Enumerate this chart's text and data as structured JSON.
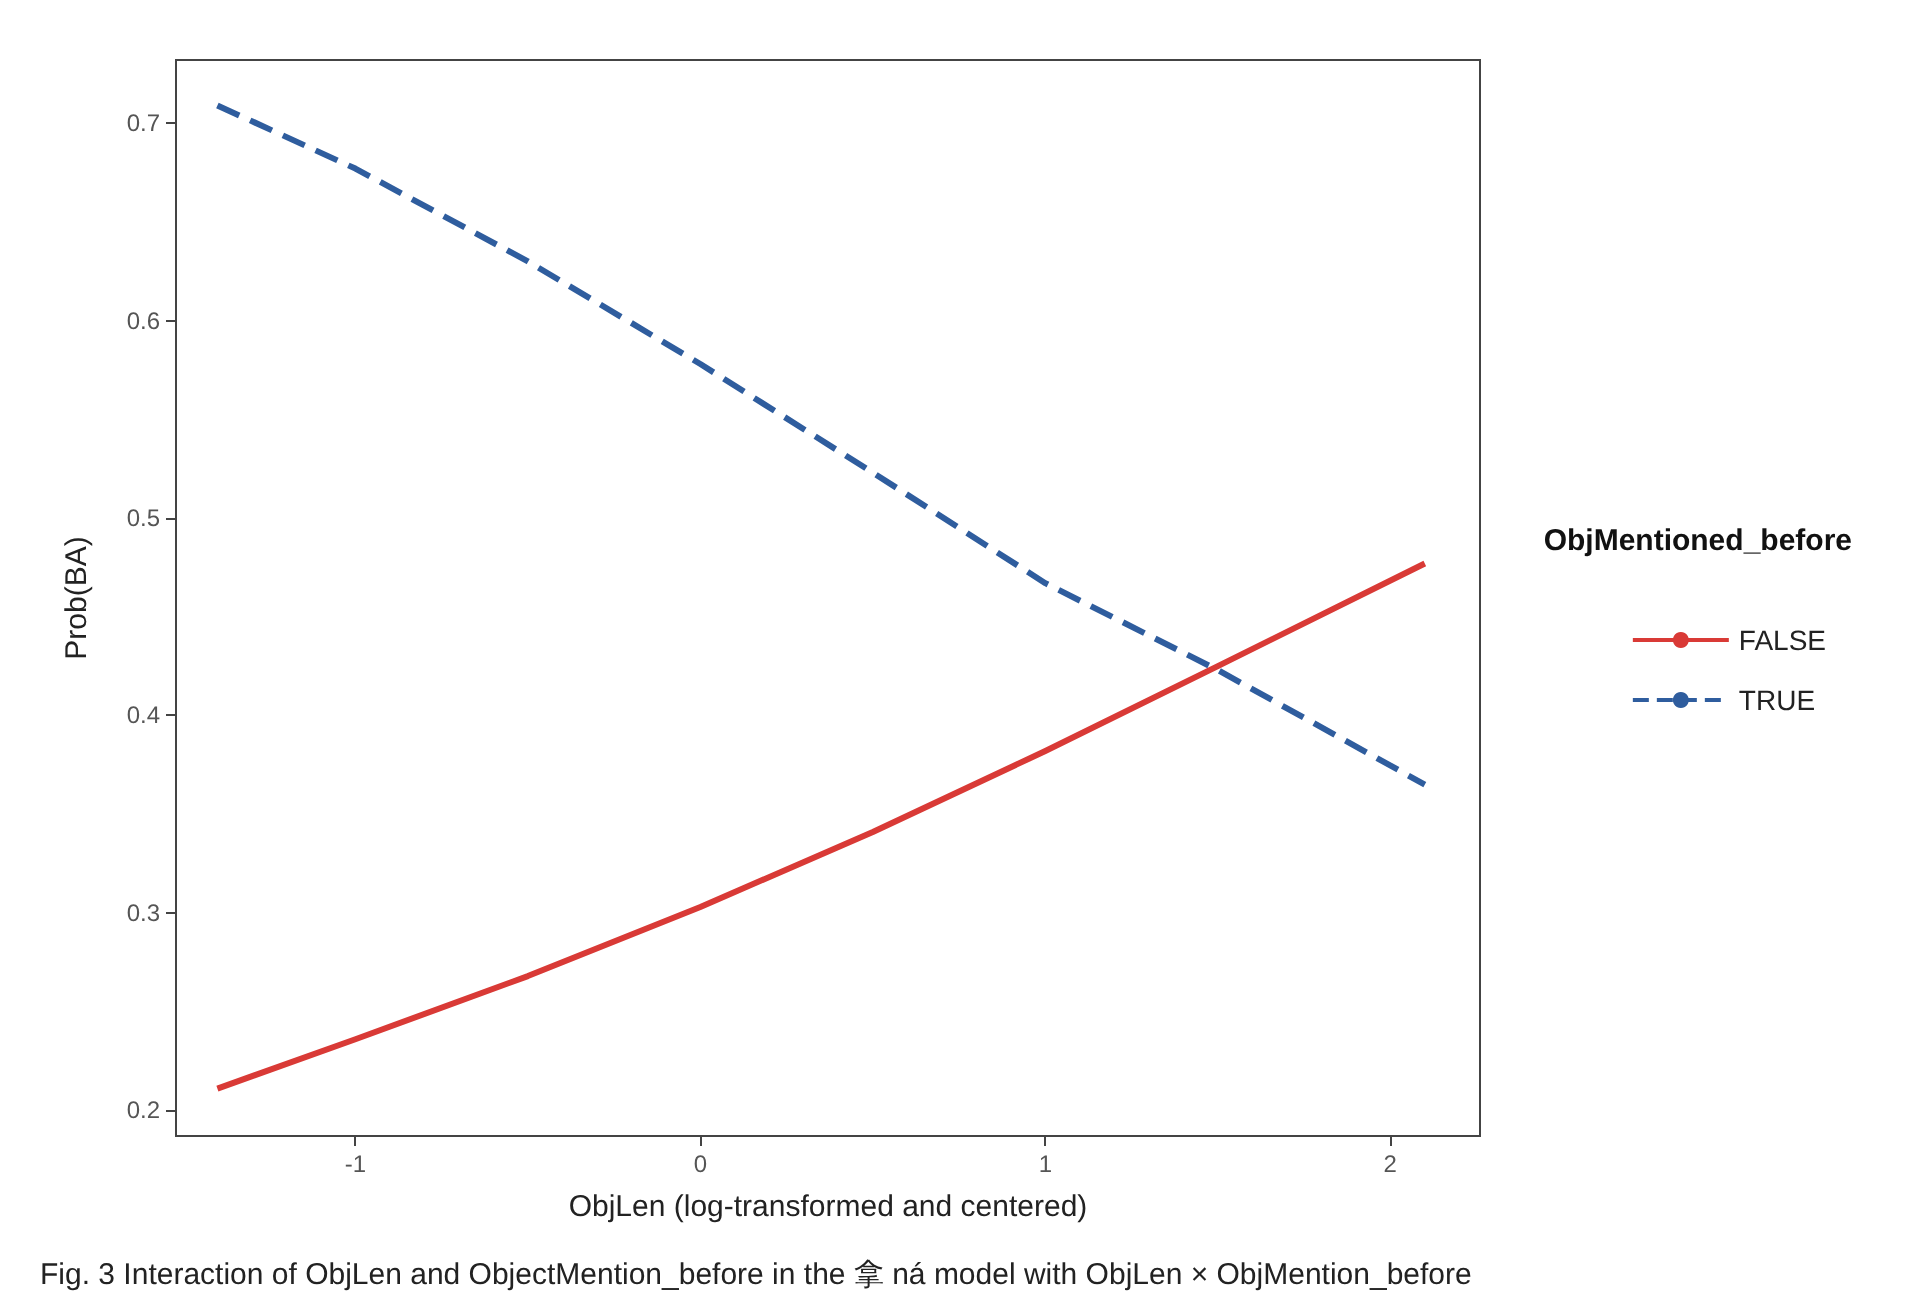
{
  "chart_data": {
    "type": "line",
    "xlabel": "ObjLen (log-transformed and centered)",
    "ylabel": "Prob(BA)",
    "legend_title": "ObjMentioned_before",
    "annotations": [
      "Fig. 3 Interaction of ObjLen and ObjectMention_before in the 拿 ná model with ObjLen × ObjMention_before"
    ],
    "x": [
      -1.4,
      -1,
      -0.5,
      0,
      0.5,
      1,
      1.5,
      2.1
    ],
    "series": [
      {
        "name": "FALSE",
        "color": "#d93a36",
        "line_style": "solid",
        "values": [
          0.211,
          0.236,
          0.268,
          0.303,
          0.341,
          0.382,
          0.425,
          0.477
        ]
      },
      {
        "name": "TRUE",
        "color": "#2f5d9e",
        "line_style": "dashed",
        "values": [
          0.709,
          0.677,
          0.63,
          0.578,
          0.523,
          0.467,
          0.423,
          0.365
        ]
      }
    ],
    "xlim": [
      -1.52,
      2.26
    ],
    "xticks": [
      -1,
      0,
      1,
      2
    ],
    "ylim": [
      0.187,
      0.732
    ],
    "yticks": [
      0.2,
      0.3,
      0.4,
      0.5,
      0.6,
      0.7
    ],
    "grid": false,
    "legend": "right",
    "marker": "none"
  }
}
